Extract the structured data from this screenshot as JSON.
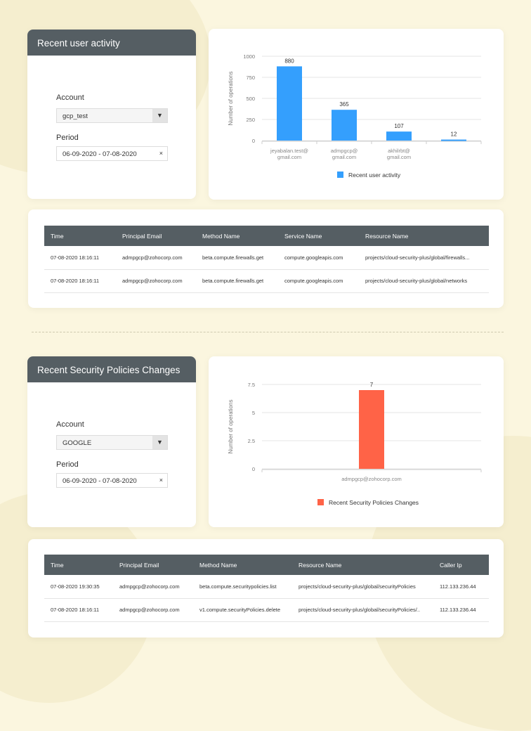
{
  "panel1": {
    "title": "Recent user activity",
    "account_label": "Account",
    "account_value": "gcp_test",
    "period_label": "Period",
    "period_value": "06-09-2020 - 07-08-2020"
  },
  "panel2": {
    "title": "Recent Security Policies Changes",
    "account_label": "Account",
    "account_value": "GOOGLE",
    "period_label": "Period",
    "period_value": "06-09-2020 - 07-08-2020"
  },
  "icons": {
    "dropdown": "chevron-down-icon",
    "clear": "close-icon"
  },
  "table1": {
    "headers": [
      "Time",
      "Principal Email",
      "Method Name",
      "Service Name",
      "Resource Name"
    ],
    "rows": [
      [
        "07-08-2020 18:16:11",
        "admpgcp@zohocorp.com",
        "beta.compute.firewalls.get",
        "compute.googleapis.com",
        "projects/cloud-security-plus/global/firewalls..."
      ],
      [
        "07-08-2020 18:16:11",
        "admpgcp@zohocorp.com",
        "beta.compute.firewalls.get",
        "compute.googleapis.com",
        "projects/cloud-security-plus/global/networks"
      ]
    ]
  },
  "table2": {
    "headers": [
      "Time",
      "Principal Email",
      "Method Name",
      "Resource Name",
      "Caller Ip"
    ],
    "rows": [
      [
        "07-08-2020 19:30:35",
        "admpgcp@zohocorp.com",
        "beta.compute.securitypolicies.list",
        "projects/cloud-security-plus/global/securityPolicies",
        "112.133.236.44"
      ],
      [
        "07-08-2020 18:16:11",
        "admpgcp@zohocorp.com",
        "v1.compute.securityPolicies.delete",
        "projects/cloud-security-plus/global/securityPolicies/..",
        "112.133.236.44"
      ]
    ]
  },
  "chart_data": [
    {
      "type": "bar",
      "ylabel": "Number of operations",
      "ylim": [
        0,
        1000
      ],
      "yticks": [
        "0",
        "250",
        "500",
        "750",
        "1000"
      ],
      "grid": true,
      "legend": "bottom",
      "color": "#349ffd",
      "categories": [
        "jeyabalan.test@ gmail.com",
        "admpgcp@ gmail.com",
        "akhilrbt@ gmail.com",
        ""
      ],
      "series": [
        {
          "name": "Recent user activity",
          "values": [
            880,
            365,
            107,
            12
          ]
        }
      ]
    },
    {
      "type": "bar",
      "ylabel": "Number of operations",
      "ylim": [
        0,
        7.5
      ],
      "yticks": [
        "0",
        "2.5",
        "5",
        "7.5"
      ],
      "grid": true,
      "legend": "bottom",
      "color": "#ff6347",
      "categories": [
        "admpgcp@zohocorp.com"
      ],
      "series": [
        {
          "name": "Recent Security Policies Changes",
          "values": [
            7
          ]
        }
      ]
    }
  ]
}
